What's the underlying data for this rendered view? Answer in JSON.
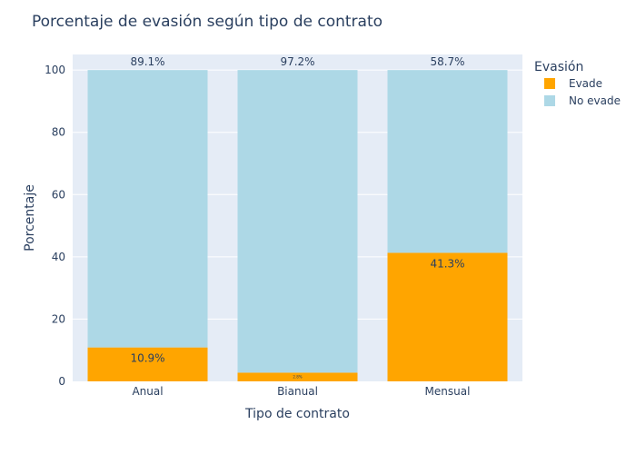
{
  "chart_data": {
    "type": "bar",
    "stacked": true,
    "title": "Porcentaje de evasión según tipo de contrato",
    "xlabel": "Tipo de contrato",
    "ylabel": "Porcentaje",
    "categories": [
      "Anual",
      "Bianual",
      "Mensual"
    ],
    "ylim": [
      0,
      105
    ],
    "yticks": [
      0,
      20,
      40,
      60,
      80,
      100
    ],
    "grid": true,
    "legend_title": "Evasión",
    "legend_position": "top-right",
    "series": [
      {
        "name": "Evade",
        "color": "#FFA500",
        "values": [
          10.9,
          2.8,
          41.3
        ],
        "labels": [
          "10.9%",
          "2.8%",
          "41.3%"
        ]
      },
      {
        "name": "No evade",
        "color": "#ADD8E6",
        "values": [
          89.1,
          97.2,
          58.7
        ],
        "labels": [
          "89.1%",
          "97.2%",
          "58.7%"
        ]
      }
    ]
  },
  "colors": {
    "plot_bg": "#E5ECF6",
    "text": "#2a3f5f",
    "grid": "#ffffff"
  }
}
